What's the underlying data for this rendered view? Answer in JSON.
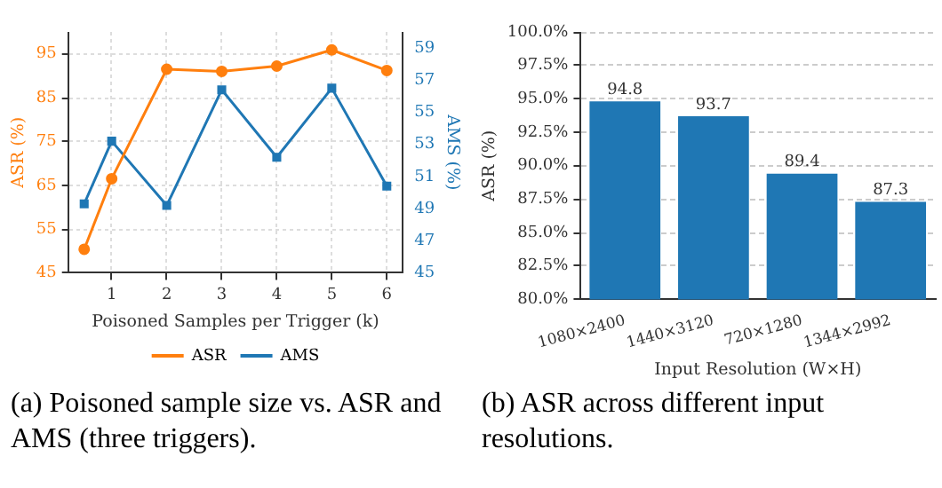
{
  "chart_data": [
    {
      "type": "line",
      "xlabel": "Poisoned Samples per Trigger (k)",
      "ylabel": "ASR (%)",
      "y2label": "AMS (%)",
      "series": [
        {
          "name": "ASR",
          "color": "#ff7f0e",
          "marker": "circle",
          "x": [
            0.5,
            1,
            2,
            3,
            4,
            5,
            6
          ],
          "values": [
            50.4,
            66.5,
            91.5,
            91.0,
            92.2,
            95.9,
            91.2
          ]
        },
        {
          "name": "AMS",
          "color": "#1f77b4",
          "marker": "square",
          "axis": "y2",
          "x": [
            0.5,
            1,
            2,
            3,
            4,
            5,
            6
          ],
          "values": [
            49.3,
            53.2,
            49.2,
            56.4,
            52.2,
            56.5,
            50.4
          ]
        }
      ],
      "xlim": [
        0.225,
        6.275
      ],
      "xticks": [
        1,
        2,
        3,
        4,
        5,
        6
      ],
      "ylim": [
        45,
        100
      ],
      "yticks": [
        45,
        55,
        65,
        75,
        85,
        95
      ],
      "y2lim": [
        45,
        60
      ],
      "y2ticks": [
        45,
        47,
        49,
        51,
        53,
        55,
        57,
        59
      ],
      "grid": true,
      "legend": "bottom",
      "annotations": [
        "(a) Poisoned sample size vs. ASR and AMS (three triggers)."
      ]
    },
    {
      "type": "bar",
      "xlabel": "Input Resolution (W×H)",
      "ylabel": "ASR (%)",
      "categories": [
        "1080×2400",
        "1440×3120",
        "720×1280",
        "1344×2992"
      ],
      "values": [
        94.8,
        93.7,
        89.4,
        87.3
      ],
      "color": "#1f77b4",
      "ylim": [
        80,
        100
      ],
      "yticks": [
        {
          "value": 80,
          "label": "80.0%"
        },
        {
          "value": 82.5,
          "label": "82.5%"
        },
        {
          "value": 85,
          "label": "85.0%"
        },
        {
          "value": 87.5,
          "label": "87.5%"
        },
        {
          "value": 90,
          "label": "90.0%"
        },
        {
          "value": 92.5,
          "label": "92.5%"
        },
        {
          "value": 95,
          "label": "95.0%"
        },
        {
          "value": 97.5,
          "label": "97.5%"
        },
        {
          "value": 100,
          "label": "100.0%"
        }
      ],
      "grid": "y",
      "data_labels": true,
      "annotations": [
        "(b) ASR across different input resolutions."
      ]
    }
  ]
}
